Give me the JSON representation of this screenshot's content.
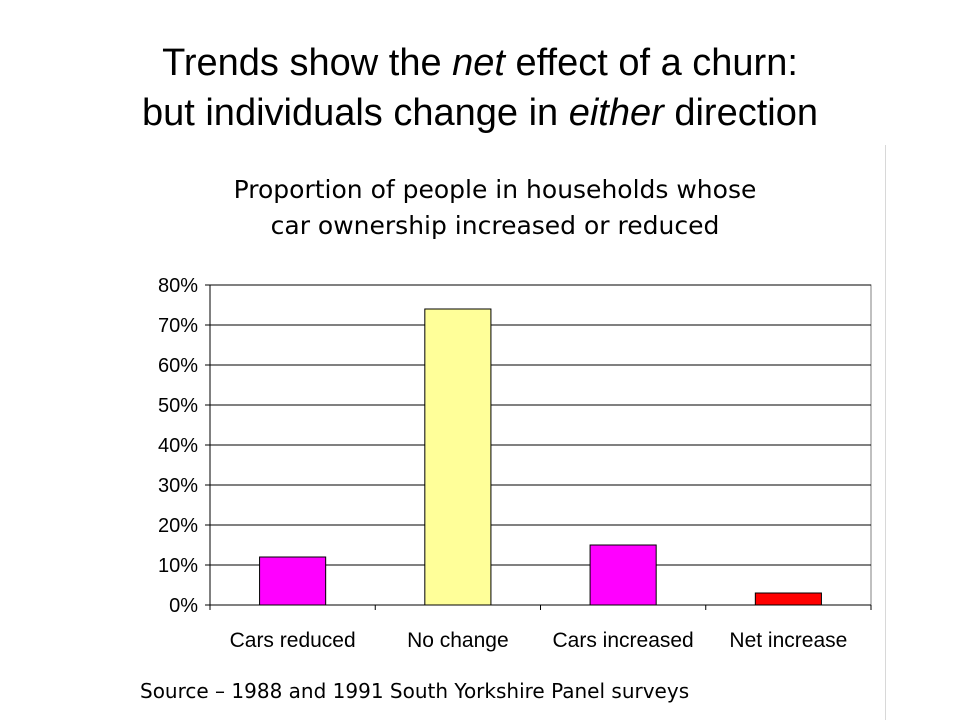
{
  "slide": {
    "title_line1_a": "Trends show the ",
    "title_line1_em": "net",
    "title_line1_b": " effect of a churn:",
    "title_line2_a": "but individuals change in ",
    "title_line2_em": "either",
    "title_line2_b": " direction"
  },
  "chart_data": {
    "type": "bar",
    "title_line1": "Proportion of people in households whose",
    "title_line2": "car ownership increased or reduced",
    "categories": [
      "Cars reduced",
      "No change",
      "Cars increased",
      "Net increase"
    ],
    "values": [
      12,
      74,
      15,
      3
    ],
    "colors": [
      "#ff00ff",
      "#ffff99",
      "#ff00ff",
      "#ff0000"
    ],
    "ylim": [
      0,
      80
    ],
    "y_ticks": [
      "0%",
      "10%",
      "20%",
      "30%",
      "40%",
      "50%",
      "60%",
      "70%",
      "80%"
    ],
    "grid": true,
    "legend": "none"
  },
  "footer": {
    "source": "Source – 1988 and 1991 South Yorkshire Panel surveys"
  }
}
